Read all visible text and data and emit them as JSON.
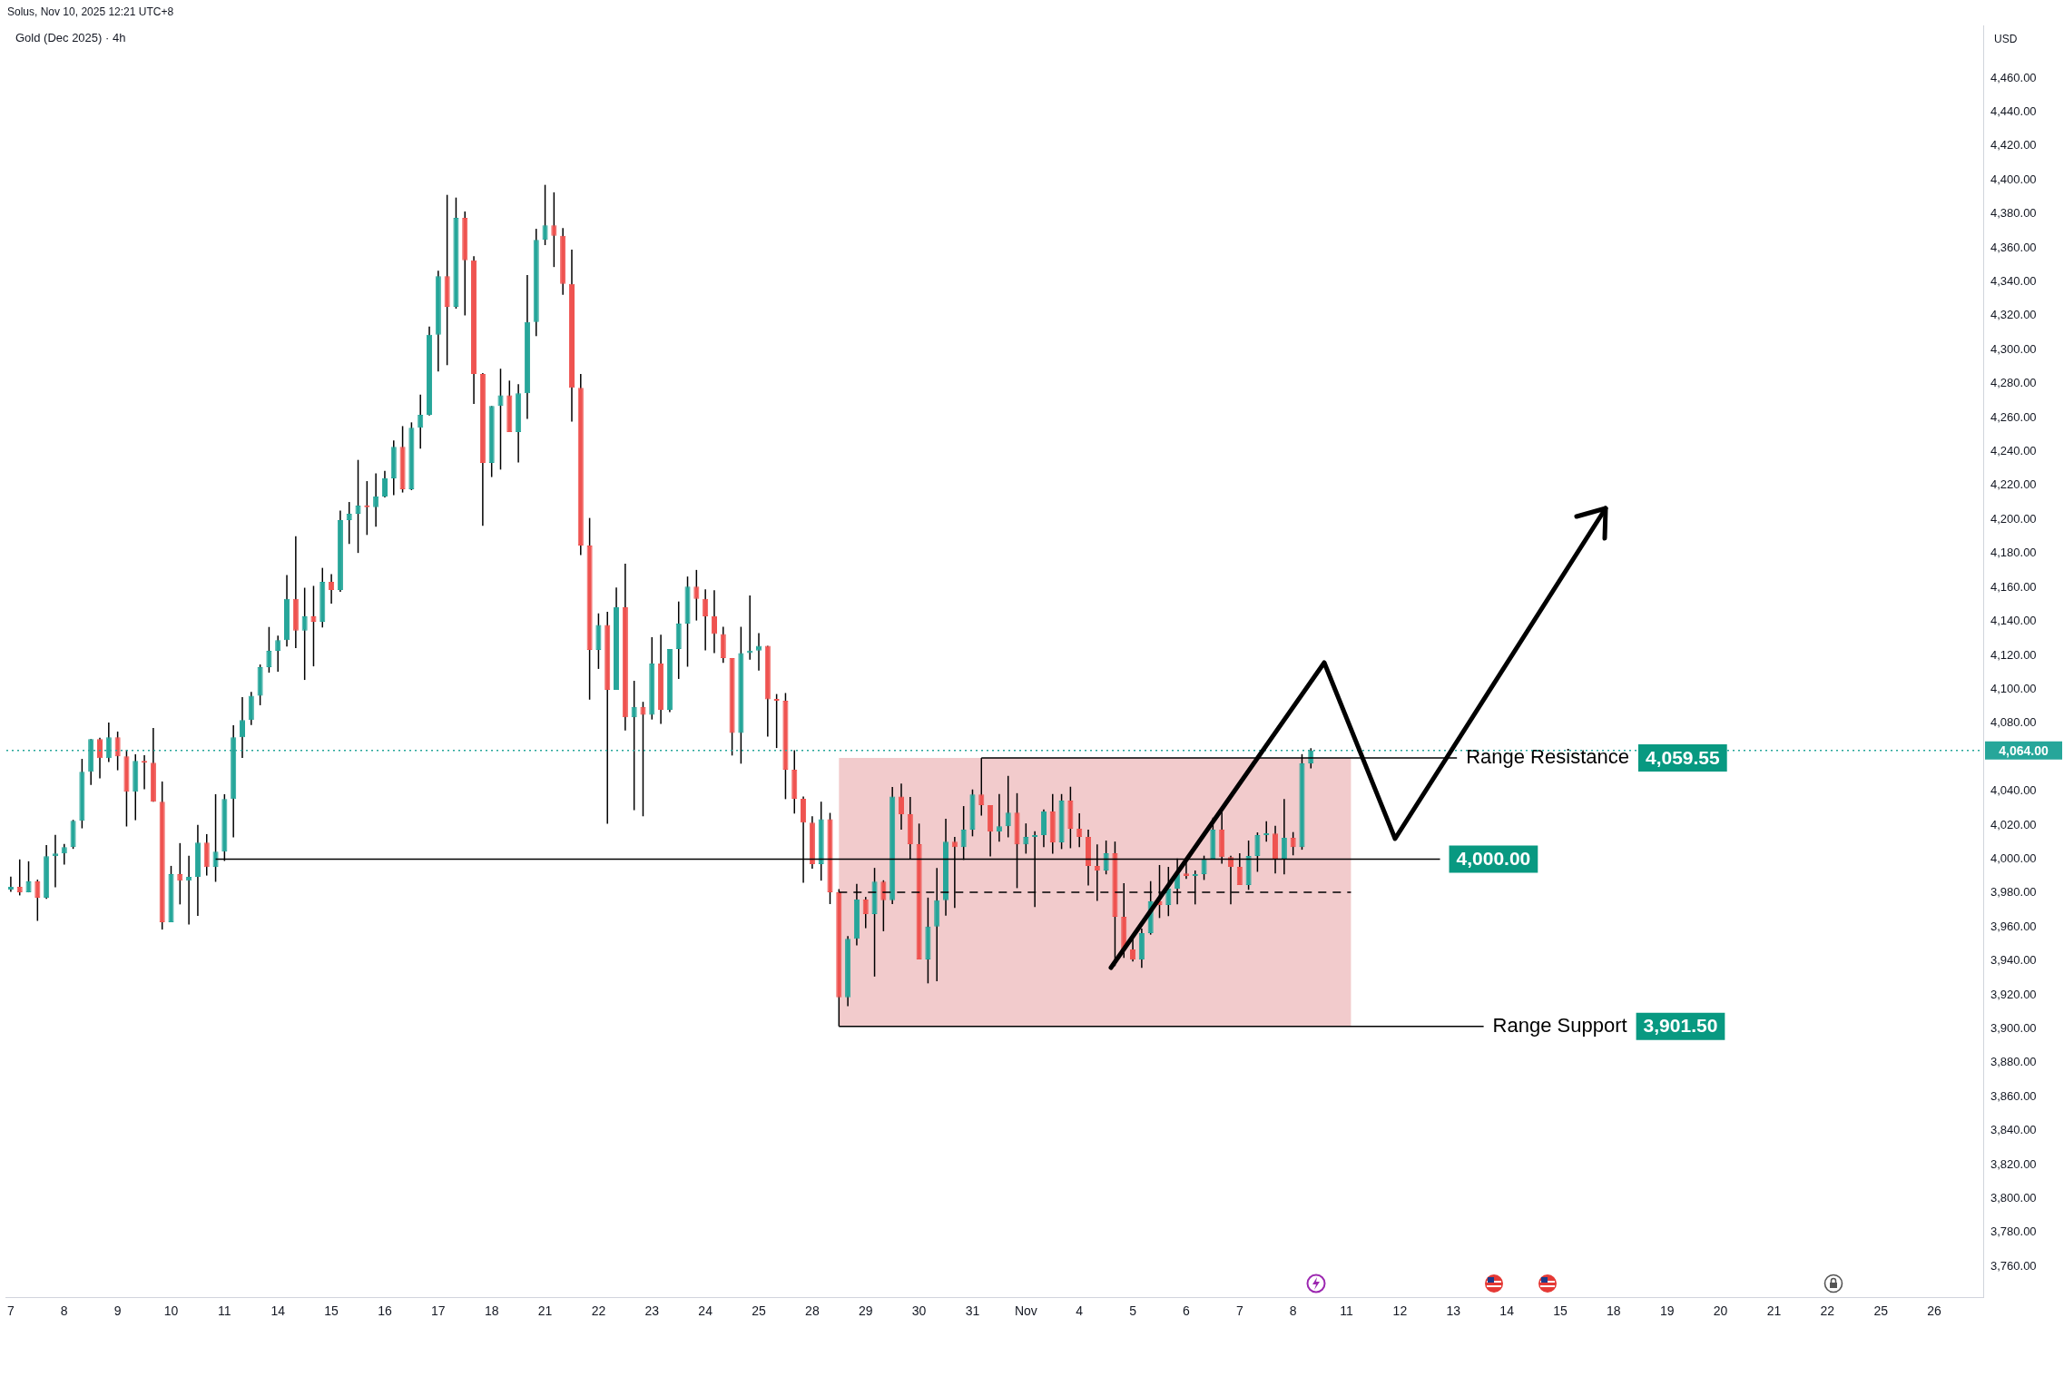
{
  "chart_data": {
    "type": "candlestick",
    "title": "Gold (Dec 2025) · 4h",
    "subtitle": "Solus, Nov 10, 2025 12:21 UTC+8",
    "ylabel": "USD",
    "categories": [
      "7",
      null,
      null,
      null,
      null,
      null,
      "8",
      null,
      null,
      null,
      null,
      null,
      "9",
      null,
      null,
      null,
      null,
      null,
      "10",
      null,
      null,
      null,
      null,
      null,
      "11",
      null,
      null,
      null,
      null,
      null,
      "14",
      null,
      null,
      null,
      null,
      null,
      "15",
      null,
      null,
      null,
      null,
      null,
      "16",
      null,
      null,
      null,
      null,
      null,
      "17",
      null,
      null,
      null,
      null,
      null,
      "18",
      null,
      null,
      null,
      null,
      null,
      "21",
      null,
      null,
      null,
      null,
      null,
      "22",
      null,
      null,
      null,
      null,
      null,
      "23",
      null,
      null,
      null,
      null,
      null,
      "24",
      null,
      null,
      null,
      null,
      null,
      "25",
      null,
      null,
      null,
      null,
      null,
      "28",
      null,
      null,
      null,
      null,
      null,
      "29",
      null,
      null,
      null,
      null,
      null,
      "30",
      null,
      null,
      null,
      null,
      null,
      "31",
      null,
      null,
      null,
      null,
      null,
      "Nov",
      null,
      null,
      null,
      null,
      null,
      "4",
      null,
      null,
      null,
      null,
      null,
      "5",
      null,
      null,
      null,
      null,
      null,
      "6",
      null,
      null,
      null,
      null,
      null,
      "7",
      null,
      null,
      null,
      null,
      null,
      "8",
      null,
      null,
      null,
      null,
      null,
      "11",
      null,
      null,
      null,
      null,
      null,
      "12",
      null,
      null,
      null,
      null,
      null,
      "13",
      null,
      null,
      null,
      null,
      null,
      "14",
      null,
      null,
      null,
      null,
      null,
      "15",
      null,
      null,
      null,
      null,
      null,
      "18",
      null,
      null,
      null,
      null,
      null,
      "19",
      null,
      null,
      null,
      null,
      null,
      "20",
      null,
      null,
      null,
      null,
      null,
      "21",
      null,
      null,
      null,
      null,
      null,
      "22",
      null,
      null,
      null,
      null,
      null,
      "25",
      null,
      null,
      null,
      null,
      null,
      "26",
      null,
      null,
      null,
      null,
      null
    ],
    "ohlc": [
      [
        3982.0,
        3989.6,
        3980.7,
        3983.6
      ],
      [
        3983.6,
        3999.8,
        3978.6,
        3980.4
      ],
      [
        3980.4,
        3998.7,
        3980.4,
        3986.8
      ],
      [
        3986.8,
        3987.9,
        3963.6,
        3977.2
      ],
      [
        3977.2,
        4008.3,
        3976.5,
        4001.7
      ],
      [
        4001.7,
        4014.2,
        3983.4,
        4003.3
      ],
      [
        4003.3,
        4008.9,
        3996.8,
        4007.1
      ],
      [
        4007.1,
        4023.1,
        4006.0,
        4022.6
      ],
      [
        4022.6,
        4059.0,
        4018.1,
        4051.4
      ],
      [
        4051.4,
        4070.6,
        4043.7,
        4070.6
      ],
      [
        4070.6,
        4071.5,
        4047.5,
        4059.4
      ],
      [
        4059.4,
        4080.4,
        4057.1,
        4071.7
      ],
      [
        4071.7,
        4075.1,
        4052.3,
        4060.5
      ],
      [
        4060.5,
        4064.4,
        4019.2,
        4039.7
      ],
      [
        4039.7,
        4061.7,
        4022.9,
        4057.8
      ],
      [
        4057.8,
        4061.2,
        4041.1,
        4056.7
      ],
      [
        4056.7,
        4077.2,
        4033.8,
        4033.8
      ],
      [
        4033.8,
        4045.7,
        3958.5,
        3962.8
      ],
      [
        3962.8,
        3996.0,
        3962.8,
        3991.1
      ],
      [
        3991.1,
        4009.4,
        3973.3,
        3987.3
      ],
      [
        3987.3,
        4001.9,
        3961.5,
        3989.5
      ],
      [
        3989.5,
        4020.1,
        3966.5,
        4009.7
      ],
      [
        4009.7,
        4014.7,
        3990.3,
        3995.3
      ],
      [
        3995.3,
        4038.2,
        3986.6,
        4004.4
      ],
      [
        4004.4,
        4038.2,
        3998.9,
        4035.4
      ],
      [
        4035.4,
        4078.8,
        4012.8,
        4071.7
      ],
      [
        4071.7,
        4095.4,
        4059.5,
        4081.9
      ],
      [
        4081.9,
        4098.4,
        4078.9,
        4096.2
      ],
      [
        4096.2,
        4114.6,
        4090.6,
        4113.0
      ],
      [
        4113.0,
        4136.7,
        4109.8,
        4122.6
      ],
      [
        4122.6,
        4131.6,
        4110.3,
        4128.9
      ],
      [
        4128.9,
        4167.3,
        4125.2,
        4153.2
      ],
      [
        4153.2,
        4190.1,
        4124.2,
        4134.5
      ],
      [
        4134.5,
        4159.8,
        4105.5,
        4143.0
      ],
      [
        4143.0,
        4160.9,
        4113.5,
        4139.8
      ],
      [
        4139.8,
        4171.5,
        4136.4,
        4163.3
      ],
      [
        4163.3,
        4167.8,
        4150.5,
        4158.5
      ],
      [
        4158.5,
        4205.3,
        4157.4,
        4199.7
      ],
      [
        4199.7,
        4210.3,
        4185.6,
        4203.4
      ],
      [
        4203.4,
        4235.1,
        4180.3,
        4208.2
      ],
      [
        4208.2,
        4222.6,
        4190.9,
        4207.2
      ],
      [
        4207.2,
        4227.1,
        4195.7,
        4213.5
      ],
      [
        4213.5,
        4228.7,
        4213.0,
        4224.2
      ],
      [
        4224.2,
        4246.5,
        4214.3,
        4242.8
      ],
      [
        4242.8,
        4255.0,
        4215.9,
        4217.8
      ],
      [
        4217.8,
        4257.2,
        4217.3,
        4254.0
      ],
      [
        4254.0,
        4273.6,
        4241.7,
        4261.7
      ],
      [
        4261.7,
        4313.6,
        4261.2,
        4308.8
      ],
      [
        4308.8,
        4346.5,
        4287.2,
        4343.3
      ],
      [
        4343.3,
        4391.2,
        4290.9,
        4325.3
      ],
      [
        4325.3,
        4389.6,
        4324.2,
        4377.7
      ],
      [
        4377.7,
        4381.4,
        4320.2,
        4352.7
      ],
      [
        4352.7,
        4355.1,
        4268.1,
        4285.7
      ],
      [
        4285.7,
        4286.2,
        4196.3,
        4233.3
      ],
      [
        4233.3,
        4266.8,
        4225.0,
        4266.8
      ],
      [
        4266.8,
        4288.8,
        4229.4,
        4273.2
      ],
      [
        4273.2,
        4281.8,
        4251.5,
        4251.5
      ],
      [
        4251.5,
        4279.7,
        4233.6,
        4274.3
      ],
      [
        4274.3,
        4344.0,
        4259.2,
        4316.3
      ],
      [
        4316.3,
        4371.2,
        4308.0,
        4364.7
      ],
      [
        4364.7,
        4397.1,
        4361.6,
        4373.3
      ],
      [
        4373.3,
        4392.7,
        4348.7,
        4367.1
      ],
      [
        4367.1,
        4371.7,
        4332.3,
        4338.8
      ],
      [
        4338.8,
        4359.0,
        4257.7,
        4277.6
      ],
      [
        4277.6,
        4285.7,
        4179.1,
        4184.6
      ],
      [
        4184.6,
        4200.9,
        4093.9,
        4123.2
      ],
      [
        4123.2,
        4144.7,
        4112.0,
        4137.9
      ],
      [
        4137.9,
        4145.7,
        4020.8,
        4099.6
      ],
      [
        4099.6,
        4160.0,
        4099.6,
        4148.3
      ],
      [
        4148.3,
        4174.0,
        4075.7,
        4083.5
      ],
      [
        4083.5,
        4105.0,
        4028.8,
        4089.7
      ],
      [
        4089.7,
        4092.6,
        4025.2,
        4085.0
      ],
      [
        4085.0,
        4130.7,
        4082.2,
        4115.1
      ],
      [
        4115.1,
        4132.2,
        4079.6,
        4087.9
      ],
      [
        4087.9,
        4123.7,
        4086.6,
        4123.7
      ],
      [
        4123.7,
        4151.7,
        4106.1,
        4138.7
      ],
      [
        4138.7,
        4166.4,
        4113.3,
        4160.5
      ],
      [
        4160.5,
        4170.3,
        4140.5,
        4153.2
      ],
      [
        4153.2,
        4158.9,
        4122.9,
        4142.9
      ],
      [
        4142.9,
        4158.3,
        4121.3,
        4132.6
      ],
      [
        4132.6,
        4136.8,
        4115.5,
        4118.4
      ],
      [
        4118.4,
        4118.4,
        4061.0,
        4074.3
      ],
      [
        4074.3,
        4136.8,
        4056.2,
        4121.3
      ],
      [
        4121.3,
        4155.2,
        4117.5,
        4122.8
      ],
      [
        4122.8,
        4133.1,
        4111.0,
        4125.6
      ],
      [
        4125.6,
        4125.6,
        4072.1,
        4094.1
      ],
      [
        4094.1,
        4097.2,
        4065.4,
        4093.2
      ],
      [
        4093.2,
        4097.8,
        4035.3,
        4052.6
      ],
      [
        4052.6,
        4064.1,
        4026.8,
        4035.5
      ],
      [
        4035.5,
        4036.9,
        3986.0,
        4021.5
      ],
      [
        4021.5,
        4025.2,
        3994.3,
        3997.0
      ],
      [
        3997.0,
        4033.8,
        3987.3,
        4023.5
      ],
      [
        4023.5,
        4027.2,
        3973.5,
        3980.5
      ],
      [
        3980.5,
        3982.3,
        3901.5,
        3918.5
      ],
      [
        3918.5,
        3954.7,
        3913.3,
        3953.1
      ],
      [
        3953.1,
        3985.4,
        3949.2,
        3976.2
      ],
      [
        3976.2,
        3977.7,
        3959.3,
        3967.6
      ],
      [
        3967.6,
        3994.8,
        3930.8,
        3986.7
      ],
      [
        3986.7,
        3987.5,
        3957.5,
        3975.7
      ],
      [
        3975.7,
        4042.4,
        3973.5,
        4036.9
      ],
      [
        4036.9,
        4044.5,
        4017.3,
        4026.4
      ],
      [
        4026.4,
        4036.6,
        3999.8,
        4008.8
      ],
      [
        4008.8,
        4020.9,
        3940.9,
        3940.9
      ],
      [
        3940.9,
        3977.3,
        3926.8,
        3960.2
      ],
      [
        3960.2,
        3994.8,
        3928.1,
        3975.7
      ],
      [
        3975.7,
        4023.7,
        3966.7,
        4010.2
      ],
      [
        4010.2,
        4013.0,
        3971.2,
        4007.1
      ],
      [
        4007.1,
        4031.2,
        3999.5,
        4017.3
      ],
      [
        4017.3,
        4041.0,
        4013.4,
        4038.1
      ],
      [
        4038.1,
        4059.55,
        4025.6,
        4031.7
      ],
      [
        4031.7,
        4031.7,
        4001.6,
        4016.2
      ],
      [
        4016.2,
        4038.3,
        4010.2,
        4019.4
      ],
      [
        4019.4,
        4049.0,
        4012.8,
        4027.4
      ],
      [
        4027.4,
        4038.8,
        3982.9,
        4008.7
      ],
      [
        4008.7,
        4021.0,
        4003.2,
        4013.0
      ],
      [
        4013.0,
        4016.4,
        3971.7,
        4014.1
      ],
      [
        4014.1,
        4029.2,
        4007.0,
        4028.0
      ],
      [
        4028.0,
        4038.3,
        4003.2,
        4009.8
      ],
      [
        4009.8,
        4038.3,
        4005.9,
        4034.4
      ],
      [
        4034.4,
        4042.6,
        4006.4,
        4017.8
      ],
      [
        4017.8,
        4026.9,
        4007.0,
        4013.0
      ],
      [
        4013.0,
        4017.3,
        3984.5,
        3995.9
      ],
      [
        3995.9,
        4008.7,
        3975.4,
        3993.3
      ],
      [
        3993.3,
        4010.9,
        3991.0,
        4003.4
      ],
      [
        4003.4,
        4010.3,
        3937.0,
        3966.0
      ],
      [
        3966.0,
        3985.8,
        3941.8,
        3946.8
      ],
      [
        3946.8,
        3953.4,
        3939.7,
        3940.9
      ],
      [
        3940.9,
        3959.1,
        3935.9,
        3956.4
      ],
      [
        3956.4,
        3987.0,
        3955.5,
        3975.1
      ],
      [
        3975.1,
        3996.5,
        3965.3,
        3973.0
      ],
      [
        3973.0,
        3995.4,
        3966.4,
        3982.6
      ],
      [
        3982.6,
        4000.4,
        3973.3,
        3991.6
      ],
      [
        3991.6,
        4000.0,
        3988.3,
        3990.0
      ],
      [
        3990.0,
        3993.3,
        3973.3,
        3991.1
      ],
      [
        3991.1,
        4002.0,
        3987.7,
        4000.2
      ],
      [
        4000.2,
        4024.4,
        4000.2,
        4017.3
      ],
      [
        4017.3,
        4028.7,
        3997.3,
        4001.1
      ],
      [
        4001.1,
        4002.0,
        3973.3,
        3995.4
      ],
      [
        3995.4,
        4003.4,
        3984.7,
        3984.7
      ],
      [
        3984.7,
        4010.9,
        3981.9,
        4001.8
      ],
      [
        4001.8,
        4015.7,
        3992.5,
        4014.1
      ],
      [
        4014.1,
        4022.3,
        4010.2,
        4015.1
      ],
      [
        4015.1,
        4019.6,
        3991.5,
        4000.2
      ],
      [
        4000.2,
        4035.4,
        3991.0,
        4012.5
      ],
      [
        4012.5,
        4015.9,
        4002.2,
        4007.1
      ],
      [
        4007.1,
        4061.8,
        4005.5,
        4056.3
      ],
      [
        4056.3,
        4065.3,
        4053.4,
        4064.0
      ],
      null,
      null,
      null,
      null,
      null,
      null,
      null,
      null,
      null,
      null,
      null,
      null,
      null,
      null,
      null,
      null,
      null,
      null,
      null,
      null,
      null,
      null,
      null,
      null,
      null,
      null,
      null,
      null,
      null,
      null,
      null,
      null,
      null,
      null,
      null,
      null,
      null,
      null,
      null,
      null,
      null,
      null,
      null,
      null,
      null,
      null,
      null,
      null,
      null,
      null,
      null,
      null,
      null,
      null,
      null,
      null,
      null,
      null,
      null,
      null,
      null,
      null,
      null,
      null,
      null,
      null,
      null,
      null,
      null,
      null,
      null,
      null,
      null,
      null,
      null
    ],
    "colors": [
      "#26a69a",
      "#ef5350",
      "#26a69a",
      "#ef5350",
      "#26a69a",
      "#26a69a",
      "#26a69a",
      "#26a69a",
      "#26a69a",
      "#26a69a",
      "#ef5350",
      "#26a69a",
      "#ef5350",
      "#ef5350",
      "#26a69a",
      "#ef5350",
      "#ef5350",
      "#ef5350",
      "#26a69a",
      "#ef5350",
      "#26a69a",
      "#26a69a",
      "#ef5350",
      "#26a69a",
      "#26a69a",
      "#26a69a",
      "#26a69a",
      "#26a69a",
      "#26a69a",
      "#26a69a",
      "#26a69a",
      "#26a69a",
      "#ef5350",
      "#26a69a",
      "#ef5350",
      "#26a69a",
      "#ef5350",
      "#26a69a",
      "#26a69a",
      "#26a69a",
      "#ef5350",
      "#26a69a",
      "#26a69a",
      "#26a69a",
      "#ef5350",
      "#26a69a",
      "#26a69a",
      "#26a69a",
      "#26a69a",
      "#ef5350",
      "#26a69a",
      "#ef5350",
      "#ef5350",
      "#ef5350",
      "#26a69a",
      "#26a69a",
      "#ef5350",
      "#26a69a",
      "#26a69a",
      "#26a69a",
      "#26a69a",
      "#ef5350",
      "#ef5350",
      "#ef5350",
      "#ef5350",
      "#ef5350",
      "#26a69a",
      "#ef5350",
      "#26a69a",
      "#ef5350",
      "#26a69a",
      "#ef5350",
      "#26a69a",
      "#ef5350",
      "#26a69a",
      "#26a69a",
      "#26a69a",
      "#ef5350",
      "#ef5350",
      "#ef5350",
      "#ef5350",
      "#ef5350",
      "#26a69a",
      "#26a69a",
      "#26a69a",
      "#ef5350",
      "#ef5350",
      "#ef5350",
      "#ef5350",
      "#ef5350",
      "#ef5350",
      "#26a69a",
      "#ef5350",
      "#ef5350",
      "#26a69a",
      "#26a69a",
      "#ef5350",
      "#26a69a",
      "#ef5350",
      "#26a69a",
      "#ef5350",
      "#ef5350",
      "#ef5350",
      "#26a69a",
      "#26a69a",
      "#26a69a",
      "#ef5350",
      "#26a69a",
      "#26a69a",
      "#ef5350",
      "#ef5350",
      "#26a69a",
      "#26a69a",
      "#ef5350",
      "#26a69a",
      "#26a69a",
      "#26a69a",
      "#ef5350",
      "#26a69a",
      "#ef5350",
      "#ef5350",
      "#ef5350",
      "#ef5350",
      "#26a69a",
      "#ef5350",
      "#ef5350",
      "#ef5350",
      "#26a69a",
      "#26a69a",
      "#ef5350",
      "#26a69a",
      "#26a69a",
      "#ef5350",
      "#26a69a",
      "#26a69a",
      "#26a69a",
      "#ef5350",
      "#ef5350",
      "#ef5350",
      "#26a69a",
      "#26a69a",
      "#26a69a",
      "#ef5350",
      "#26a69a",
      "#ef5350",
      "#26a69a",
      "#26a69a",
      null,
      null,
      null,
      null,
      null,
      null,
      null,
      null,
      null,
      null,
      null,
      null,
      null,
      null,
      null,
      null,
      null,
      null,
      null,
      null,
      null,
      null,
      null,
      null,
      null,
      null,
      null,
      null,
      null,
      null,
      null,
      null,
      null,
      null,
      null,
      null,
      null,
      null,
      null,
      null,
      null,
      null,
      null,
      null,
      null,
      null,
      null,
      null,
      null,
      null,
      null,
      null,
      null,
      null,
      null,
      null,
      null,
      null,
      null,
      null,
      null,
      null,
      null,
      null,
      null,
      null,
      null,
      null,
      null,
      null,
      null,
      null,
      null,
      null,
      null
    ],
    "annotations": [
      "4,059.55",
      "4,000.00",
      "3,901.50",
      "4,064.00"
    ],
    "ylim": [
      3742,
      4491
    ],
    "yticks": [
      {
        "value": 3760,
        "label": "3,760.00"
      },
      {
        "value": 3780,
        "label": "3,780.00"
      },
      {
        "value": 3800,
        "label": "3,800.00"
      },
      {
        "value": 3820,
        "label": "3,820.00"
      },
      {
        "value": 3840,
        "label": "3,840.00"
      },
      {
        "value": 3860,
        "label": "3,860.00"
      },
      {
        "value": 3880,
        "label": "3,880.00"
      },
      {
        "value": 3900,
        "label": "3,900.00"
      },
      {
        "value": 3920,
        "label": "3,920.00"
      },
      {
        "value": 3940,
        "label": "3,940.00"
      },
      {
        "value": 3960,
        "label": "3,960.00"
      },
      {
        "value": 3980,
        "label": "3,980.00"
      },
      {
        "value": 4000,
        "label": "4,000.00"
      },
      {
        "value": 4020,
        "label": "4,020.00"
      },
      {
        "value": 4040,
        "label": "4,040.00"
      },
      {
        "value": 4080,
        "label": "4,080.00"
      },
      {
        "value": 4100,
        "label": "4,100.00"
      },
      {
        "value": 4120,
        "label": "4,120.00"
      },
      {
        "value": 4140,
        "label": "4,140.00"
      },
      {
        "value": 4160,
        "label": "4,160.00"
      },
      {
        "value": 4180,
        "label": "4,180.00"
      },
      {
        "value": 4200,
        "label": "4,200.00"
      },
      {
        "value": 4220,
        "label": "4,220.00"
      },
      {
        "value": 4240,
        "label": "4,240.00"
      },
      {
        "value": 4260,
        "label": "4,260.00"
      },
      {
        "value": 4280,
        "label": "4,280.00"
      },
      {
        "value": 4300,
        "label": "4,300.00"
      },
      {
        "value": 4320,
        "label": "4,320.00"
      },
      {
        "value": 4340,
        "label": "4,340.00"
      },
      {
        "value": 4360,
        "label": "4,360.00"
      },
      {
        "value": 4380,
        "label": "4,380.00"
      },
      {
        "value": 4400,
        "label": "4,400.00"
      },
      {
        "value": 4420,
        "label": "4,420.00"
      },
      {
        "value": 4440,
        "label": "4,440.00"
      },
      {
        "value": 4460,
        "label": "4,460.00"
      }
    ],
    "ref_lines": [
      {
        "axis": "y",
        "value": 4059.55,
        "label": "Range Resistance",
        "color": "#000000",
        "line_style": "solid"
      },
      {
        "axis": "y",
        "value": 4000,
        "color": "#000000",
        "line_style": "solid"
      },
      {
        "axis": "y",
        "value": 3901.5,
        "label": "Range Support",
        "color": "#000000",
        "line_style": "solid"
      },
      {
        "axis": "y",
        "value": 3980.5,
        "color": "#000000",
        "line_style": "dashed"
      },
      {
        "axis": "y",
        "value": 4064,
        "color": "#26a69a",
        "line_style": "dotted"
      }
    ],
    "bands": [
      {
        "axis": "y",
        "from": 3901.5,
        "to": 4059.55,
        "color": "#f2cbcc"
      }
    ]
  }
}
